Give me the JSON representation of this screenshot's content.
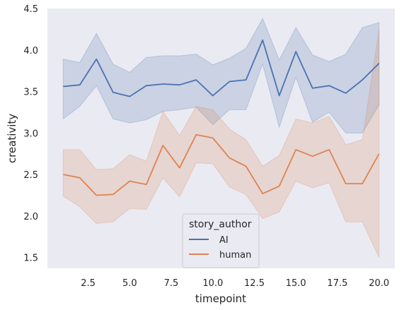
{
  "chart_data": {
    "type": "line",
    "xlabel": "timepoint",
    "ylabel": "creativity",
    "xlim": [
      0.05,
      20.95
    ],
    "ylim": [
      1.37,
      4.5
    ],
    "xticks": [
      2.5,
      5.0,
      7.5,
      10.0,
      12.5,
      15.0,
      17.5,
      20.0
    ],
    "xtick_labels": [
      "2.5",
      "5.0",
      "7.5",
      "10.0",
      "12.5",
      "15.0",
      "17.5",
      "20.0"
    ],
    "yticks": [
      1.5,
      2.0,
      2.5,
      3.0,
      3.5,
      4.0,
      4.5
    ],
    "ytick_labels": [
      "1.5",
      "2.0",
      "2.5",
      "3.0",
      "3.5",
      "4.0",
      "4.5"
    ],
    "grid": false,
    "background": "#eaeaf2",
    "legend": {
      "title": "story_author",
      "placement": "lower-center"
    },
    "x": [
      1,
      2,
      3,
      4,
      5,
      6,
      7,
      8,
      9,
      10,
      11,
      12,
      13,
      14,
      15,
      16,
      17,
      18,
      19,
      20
    ],
    "series": [
      {
        "name": "AI",
        "color": "#4c72b0",
        "values": [
          3.56,
          3.58,
          3.89,
          3.49,
          3.44,
          3.57,
          3.59,
          3.58,
          3.64,
          3.45,
          3.62,
          3.64,
          4.12,
          3.45,
          3.98,
          3.54,
          3.57,
          3.48,
          3.64,
          3.84
        ],
        "ci_low": [
          3.17,
          3.32,
          3.57,
          3.17,
          3.12,
          3.16,
          3.26,
          3.28,
          3.31,
          3.1,
          3.28,
          3.28,
          3.83,
          3.07,
          3.67,
          3.13,
          3.25,
          3.0,
          3.0,
          3.34
        ],
        "ci_high": [
          3.89,
          3.85,
          4.2,
          3.83,
          3.73,
          3.91,
          3.93,
          3.93,
          3.95,
          3.82,
          3.9,
          4.02,
          4.38,
          3.88,
          4.27,
          3.94,
          3.86,
          3.95,
          4.27,
          4.33
        ]
      },
      {
        "name": "human",
        "color": "#dd8452",
        "values": [
          2.5,
          2.46,
          2.25,
          2.26,
          2.42,
          2.38,
          2.85,
          2.58,
          2.98,
          2.94,
          2.7,
          2.6,
          2.27,
          2.36,
          2.8,
          2.72,
          2.8,
          2.39,
          2.39,
          2.75
        ],
        "ci_low": [
          2.24,
          2.11,
          1.91,
          1.93,
          2.09,
          2.08,
          2.46,
          2.23,
          2.64,
          2.63,
          2.35,
          2.26,
          1.97,
          2.05,
          2.42,
          2.34,
          2.4,
          1.93,
          1.93,
          1.5
        ],
        "ci_high": [
          2.8,
          2.8,
          2.56,
          2.57,
          2.74,
          2.66,
          3.26,
          2.97,
          3.32,
          3.28,
          3.05,
          2.92,
          2.6,
          2.73,
          3.17,
          3.12,
          3.2,
          2.86,
          2.92,
          4.25
        ]
      }
    ]
  }
}
